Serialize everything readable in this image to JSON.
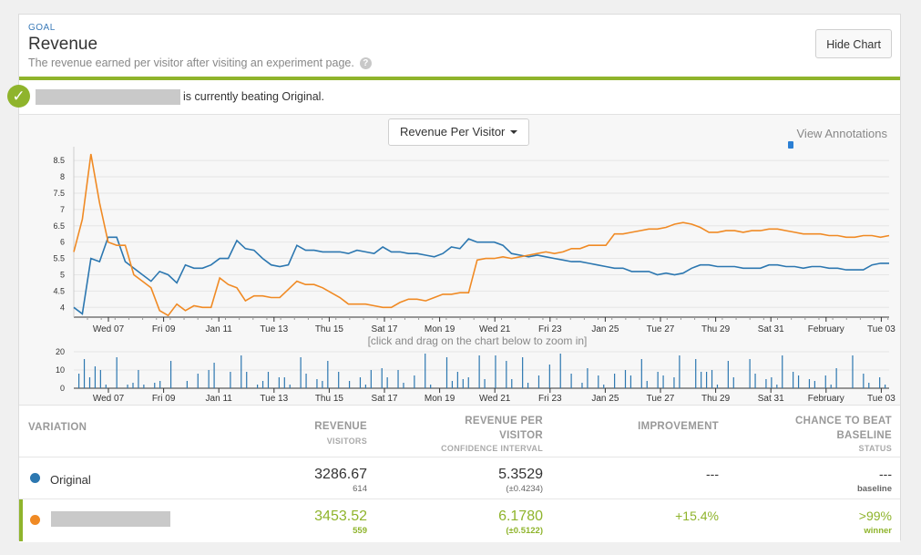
{
  "goal": {
    "label": "GOAL",
    "title": "Revenue",
    "description": "The revenue earned per visitor after visiting an experiment page.",
    "help_icon": "?",
    "hide_button": "Hide Chart"
  },
  "banner": {
    "text": "is currently beating Original.",
    "check_icon": "✓"
  },
  "chart_controls": {
    "metric_selector": "Revenue Per Visitor",
    "view_annotations": "View Annotations",
    "zoom_hint": "[click and drag on the chart below to zoom in]"
  },
  "colors": {
    "original": "#2c77b0",
    "variation": "#f08a24",
    "accent_green": "#8fb42c"
  },
  "chart_data": [
    {
      "type": "line",
      "x_ticks": [
        "Wed 07",
        "Fri 09",
        "Jan 11",
        "Tue 13",
        "Thu 15",
        "Sat 17",
        "Mon 19",
        "Wed 21",
        "Fri 23",
        "Jan 25",
        "Tue 27",
        "Thu 29",
        "Sat 31",
        "February",
        "Tue 03"
      ],
      "y_ticks": [
        "4",
        "4.5",
        "5",
        "5.5",
        "6",
        "6.5",
        "7",
        "7.5",
        "8",
        "8.5"
      ],
      "ylim": [
        3.7,
        8.7
      ],
      "series": [
        {
          "name": "Original",
          "color": "#2c77b0",
          "values": [
            4.0,
            3.8,
            5.5,
            5.4,
            6.15,
            6.15,
            5.4,
            5.2,
            5.0,
            4.8,
            5.1,
            5.0,
            4.75,
            5.3,
            5.2,
            5.2,
            5.3,
            5.5,
            5.5,
            6.05,
            5.8,
            5.75,
            5.5,
            5.3,
            5.25,
            5.3,
            5.9,
            5.75,
            5.75,
            5.7,
            5.7,
            5.7,
            5.65,
            5.75,
            5.7,
            5.65,
            5.85,
            5.7,
            5.7,
            5.65,
            5.65,
            5.6,
            5.55,
            5.65,
            5.85,
            5.8,
            6.1,
            6.0,
            6.0,
            6.0,
            5.9,
            5.65,
            5.6,
            5.55,
            5.6,
            5.55,
            5.5,
            5.45,
            5.4,
            5.4,
            5.35,
            5.3,
            5.25,
            5.2,
            5.2,
            5.1,
            5.1,
            5.1,
            5.0,
            5.05,
            5.0,
            5.05,
            5.2,
            5.3,
            5.3,
            5.25,
            5.25,
            5.25,
            5.2,
            5.2,
            5.2,
            5.3,
            5.3,
            5.25,
            5.25,
            5.2,
            5.25,
            5.25,
            5.2,
            5.2,
            5.15,
            5.15,
            5.15,
            5.3,
            5.35,
            5.35
          ]
        },
        {
          "name": "Variation",
          "color": "#f08a24",
          "values": [
            5.7,
            6.7,
            8.7,
            7.2,
            6.0,
            5.9,
            5.9,
            5.0,
            4.8,
            4.6,
            3.9,
            3.75,
            4.1,
            3.9,
            4.05,
            4.0,
            4.0,
            4.9,
            4.7,
            4.6,
            4.2,
            4.35,
            4.35,
            4.3,
            4.3,
            4.55,
            4.8,
            4.7,
            4.7,
            4.6,
            4.45,
            4.3,
            4.1,
            4.1,
            4.1,
            4.05,
            4.0,
            4.0,
            4.15,
            4.25,
            4.25,
            4.2,
            4.3,
            4.4,
            4.4,
            4.45,
            4.45,
            5.45,
            5.5,
            5.5,
            5.55,
            5.5,
            5.55,
            5.6,
            5.65,
            5.7,
            5.65,
            5.7,
            5.8,
            5.8,
            5.9,
            5.9,
            5.9,
            6.25,
            6.25,
            6.3,
            6.35,
            6.4,
            6.4,
            6.45,
            6.55,
            6.6,
            6.55,
            6.45,
            6.3,
            6.3,
            6.35,
            6.35,
            6.3,
            6.35,
            6.35,
            6.4,
            6.4,
            6.35,
            6.3,
            6.25,
            6.25,
            6.25,
            6.2,
            6.2,
            6.15,
            6.15,
            6.2,
            6.2,
            6.15,
            6.2
          ]
        }
      ]
    },
    {
      "type": "bar",
      "y_ticks": [
        "0",
        "10",
        "20"
      ],
      "ylim": [
        0,
        20
      ],
      "series": [
        {
          "name": "visitors",
          "color": "#2c77b0",
          "values": [
            8,
            16,
            6,
            12,
            10,
            2,
            0,
            17,
            0,
            2,
            3,
            10,
            2,
            0,
            3,
            4,
            0,
            15,
            0,
            0,
            4,
            0,
            8,
            0,
            10,
            14,
            0,
            0,
            9,
            0,
            18,
            9,
            0,
            2,
            4,
            9,
            0,
            6,
            6,
            2,
            0,
            17,
            8,
            0,
            5,
            4,
            15,
            0,
            9,
            0,
            4,
            0,
            6,
            2,
            10,
            0,
            11,
            6,
            0,
            10,
            3,
            0,
            7,
            0,
            19,
            2,
            0,
            0,
            17,
            4,
            9,
            5,
            6,
            0,
            18,
            5,
            0,
            18,
            0,
            15,
            5,
            0,
            17,
            3,
            0,
            7,
            0,
            13,
            0,
            19,
            0,
            8,
            0,
            3,
            11,
            0,
            7,
            2,
            0,
            8,
            0,
            10,
            7,
            0,
            16,
            4,
            0,
            9,
            7,
            0,
            6,
            18,
            0,
            0,
            16,
            9,
            9,
            10,
            2,
            0,
            15,
            6,
            0,
            0,
            16,
            8,
            0,
            5,
            6,
            2,
            18,
            0,
            9,
            7,
            0,
            5,
            4,
            0,
            7,
            2,
            11,
            0,
            0,
            18,
            0,
            8,
            3,
            0,
            6,
            2
          ]
        }
      ]
    }
  ],
  "table": {
    "headers": {
      "variation": "VARIATION",
      "revenue": "REVENUE",
      "revenue_sub": "VISITORS",
      "rpv_line1": "REVENUE PER",
      "rpv_line2": "VISITOR",
      "rpv_sub": "CONFIDENCE INTERVAL",
      "improvement": "IMPROVEMENT",
      "chance_line1": "CHANCE TO BEAT",
      "chance_line2": "BASELINE",
      "chance_sub": "STATUS"
    },
    "rows": [
      {
        "name": "Original",
        "color": "#2c77b0",
        "revenue": "3286.67",
        "visitors": "614",
        "rpv": "5.3529",
        "ci": "(±0.4234)",
        "improvement": "---",
        "chance": "---",
        "status": "baseline"
      },
      {
        "name": "",
        "color": "#f08a24",
        "revenue": "3453.52",
        "visitors": "559",
        "rpv": "6.1780",
        "ci": "(±0.5122)",
        "improvement": "+15.4%",
        "chance": ">99%",
        "status": "winner"
      }
    ]
  }
}
